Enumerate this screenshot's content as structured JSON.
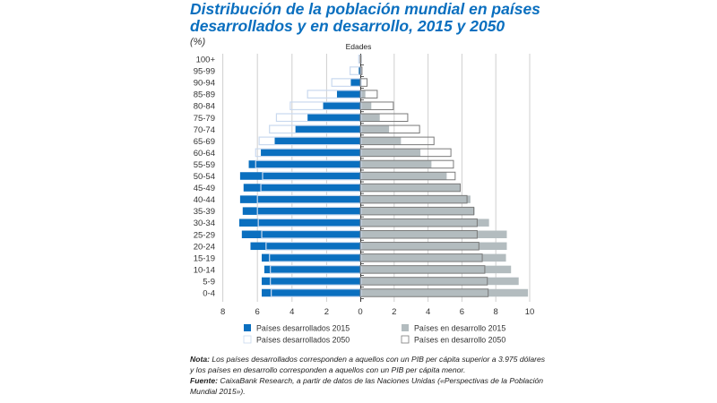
{
  "title": "Distribución de la población mundial en países desarrollados y en desarrollo, 2015 y 2050",
  "unit_label": "(%)",
  "notes": {
    "nota_label": "Nota:",
    "nota_text": "Los países desarrollados corresponden a aquellos con un PIB per cápita superior a 3.975 dólares y los países en desarrollo corresponden a aquellos con un PIB per cápita menor.",
    "fuente_label": "Fuente:",
    "fuente_text": "CaixaBank Research, a partir de datos de las Naciones Unidas («Perspectivas de la Población Mundial 2015»)."
  },
  "chart_data": {
    "type": "bar",
    "orientation": "horizontal-pyramid",
    "title": "Distribución de la población mundial en países desarrollados y en desarrollo, 2015 y 2050",
    "category_axis_label": "Edades",
    "categories": [
      "100+",
      "95-99",
      "90-94",
      "85-89",
      "80-84",
      "75-79",
      "70-74",
      "65-69",
      "60-64",
      "55-59",
      "50-54",
      "45-49",
      "40-44",
      "35-39",
      "30-34",
      "25-29",
      "20-24",
      "15-19",
      "10-14",
      "5-9",
      "0-4"
    ],
    "left_axis": {
      "ticks": [
        "8",
        "6",
        "4",
        "2",
        "0"
      ],
      "range": [
        8,
        0
      ]
    },
    "right_axis": {
      "ticks": [
        "0",
        "2",
        "4",
        "6",
        "8",
        "10"
      ],
      "range": [
        0,
        10
      ]
    },
    "grid": true,
    "legend_position": "bottom",
    "series": [
      {
        "name": "Países desarrollados 2015",
        "side": "left",
        "style": "filled",
        "color": "#0a6fbf",
        "values": [
          0.05,
          0.14,
          0.6,
          1.4,
          2.2,
          3.1,
          3.8,
          5.0,
          5.8,
          6.5,
          7.0,
          6.8,
          7.0,
          6.85,
          7.05,
          6.9,
          6.4,
          5.75,
          5.6,
          5.75,
          5.75
        ]
      },
      {
        "name": "Países desarrollados 2050",
        "side": "left",
        "style": "outline",
        "color": "#c9d9ef",
        "values": [
          0.14,
          0.64,
          1.7,
          3.1,
          4.1,
          4.9,
          5.3,
          5.9,
          6.1,
          6.1,
          5.7,
          5.8,
          6.0,
          6.0,
          5.95,
          5.75,
          5.5,
          5.3,
          5.25,
          5.25,
          5.2
        ]
      },
      {
        "name": "Países en desarrollo 2015",
        "side": "right",
        "style": "filled",
        "color": "#b3bcbf",
        "values": [
          0.0,
          0.1,
          0.05,
          0.3,
          0.65,
          1.15,
          1.7,
          2.4,
          3.55,
          4.2,
          5.1,
          5.9,
          6.5,
          6.75,
          7.6,
          8.65,
          8.65,
          8.6,
          8.9,
          9.35,
          9.9
        ]
      },
      {
        "name": "Países en desarrollo 2050",
        "side": "right",
        "style": "outline",
        "color": "#7a7a7a",
        "values": [
          0.04,
          0.1,
          0.4,
          1.0,
          1.95,
          2.8,
          3.5,
          4.35,
          5.35,
          5.5,
          5.6,
          5.9,
          6.3,
          6.7,
          6.9,
          6.9,
          7.0,
          7.2,
          7.35,
          7.5,
          7.55
        ]
      }
    ]
  }
}
